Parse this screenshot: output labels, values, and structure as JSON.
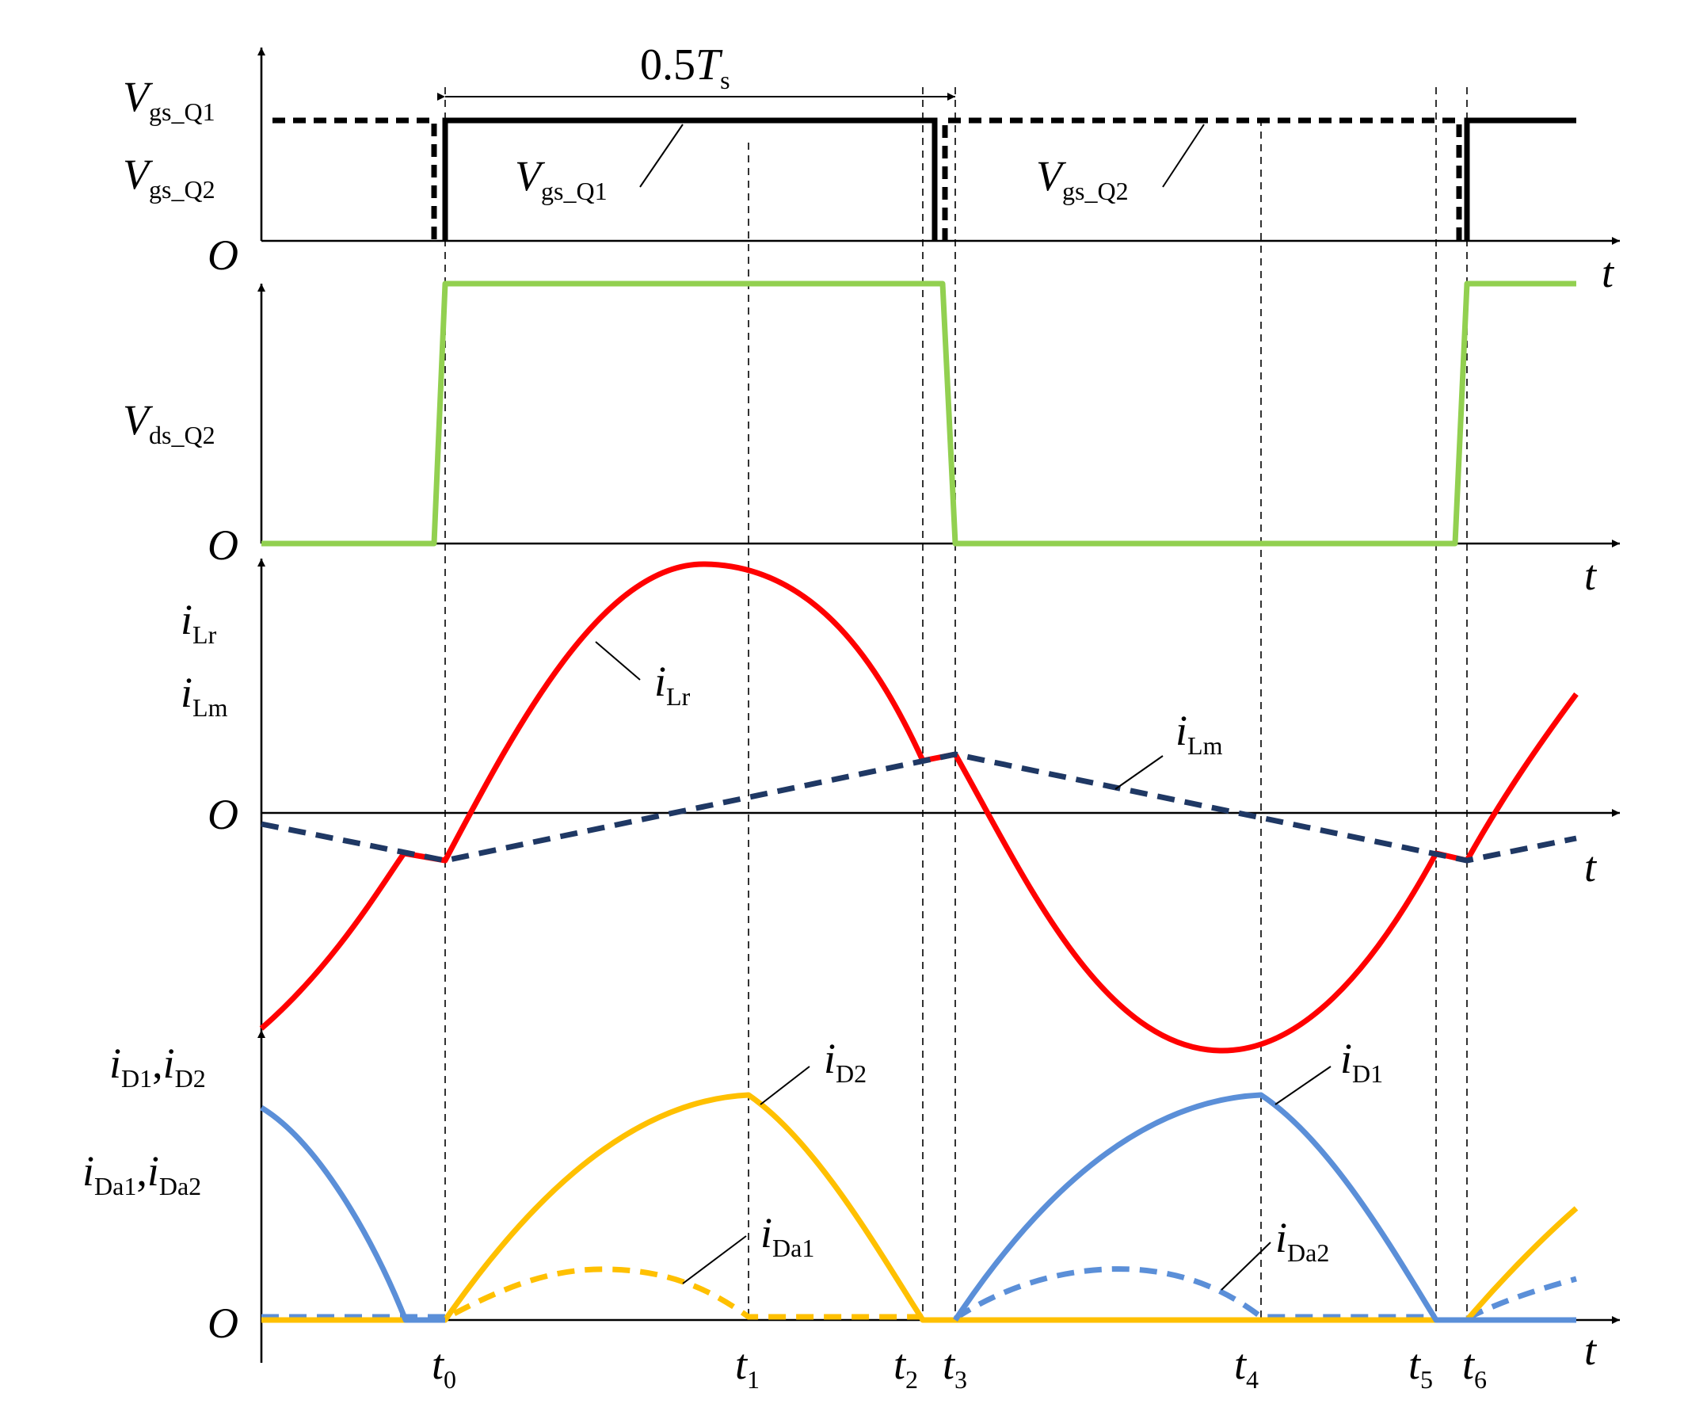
{
  "figure": {
    "period_label": {
      "main": "0.5",
      "T": "T",
      "sub": "s"
    },
    "t_axis": "t",
    "origin": "O"
  },
  "panels": {
    "gate": {
      "labels": [
        {
          "main": "V",
          "sub": "gs_Q1"
        },
        {
          "main": "V",
          "sub": "gs_Q2"
        }
      ],
      "callout_q1": {
        "main": "V",
        "sub": "gs_Q1"
      },
      "callout_q2": {
        "main": "V",
        "sub": "gs_Q2"
      }
    },
    "vds": {
      "label": {
        "main": "V",
        "sub": "ds_Q2"
      }
    },
    "current": {
      "labels": [
        {
          "main": "i",
          "sub": "Lr"
        },
        {
          "main": "i",
          "sub": "Lm"
        }
      ],
      "callout_lr": {
        "main": "i",
        "sub": "Lr"
      },
      "callout_lm": {
        "main": "i",
        "sub": "Lm"
      }
    },
    "diode": {
      "label_line1": {
        "a": "i",
        "a_sub": "D1",
        "sep": ",",
        "b": "i",
        "b_sub": "D2"
      },
      "label_line2": {
        "a": "i",
        "a_sub": "Da1",
        "sep": ",",
        "b": "i",
        "b_sub": "Da2"
      },
      "callout_d2": {
        "main": "i",
        "sub": "D2"
      },
      "callout_da1": {
        "main": "i",
        "sub": "Da1"
      },
      "callout_d1": {
        "main": "i",
        "sub": "D1"
      },
      "callout_da2": {
        "main": "i",
        "sub": "Da2"
      }
    }
  },
  "time_markers": [
    {
      "main": "t",
      "sub": "0"
    },
    {
      "main": "t",
      "sub": "1"
    },
    {
      "main": "t",
      "sub": "2"
    },
    {
      "main": "t",
      "sub": "3"
    },
    {
      "main": "t",
      "sub": "4"
    },
    {
      "main": "t",
      "sub": "5"
    },
    {
      "main": "t",
      "sub": "6"
    }
  ],
  "colors": {
    "gate": "#000000",
    "vds": "#92d050",
    "i_Lr": "#ff0000",
    "i_Lm": "#1f3864",
    "i_D2": "#ffc000",
    "i_D1": "#5b8fd8",
    "guide": "#000000"
  }
}
